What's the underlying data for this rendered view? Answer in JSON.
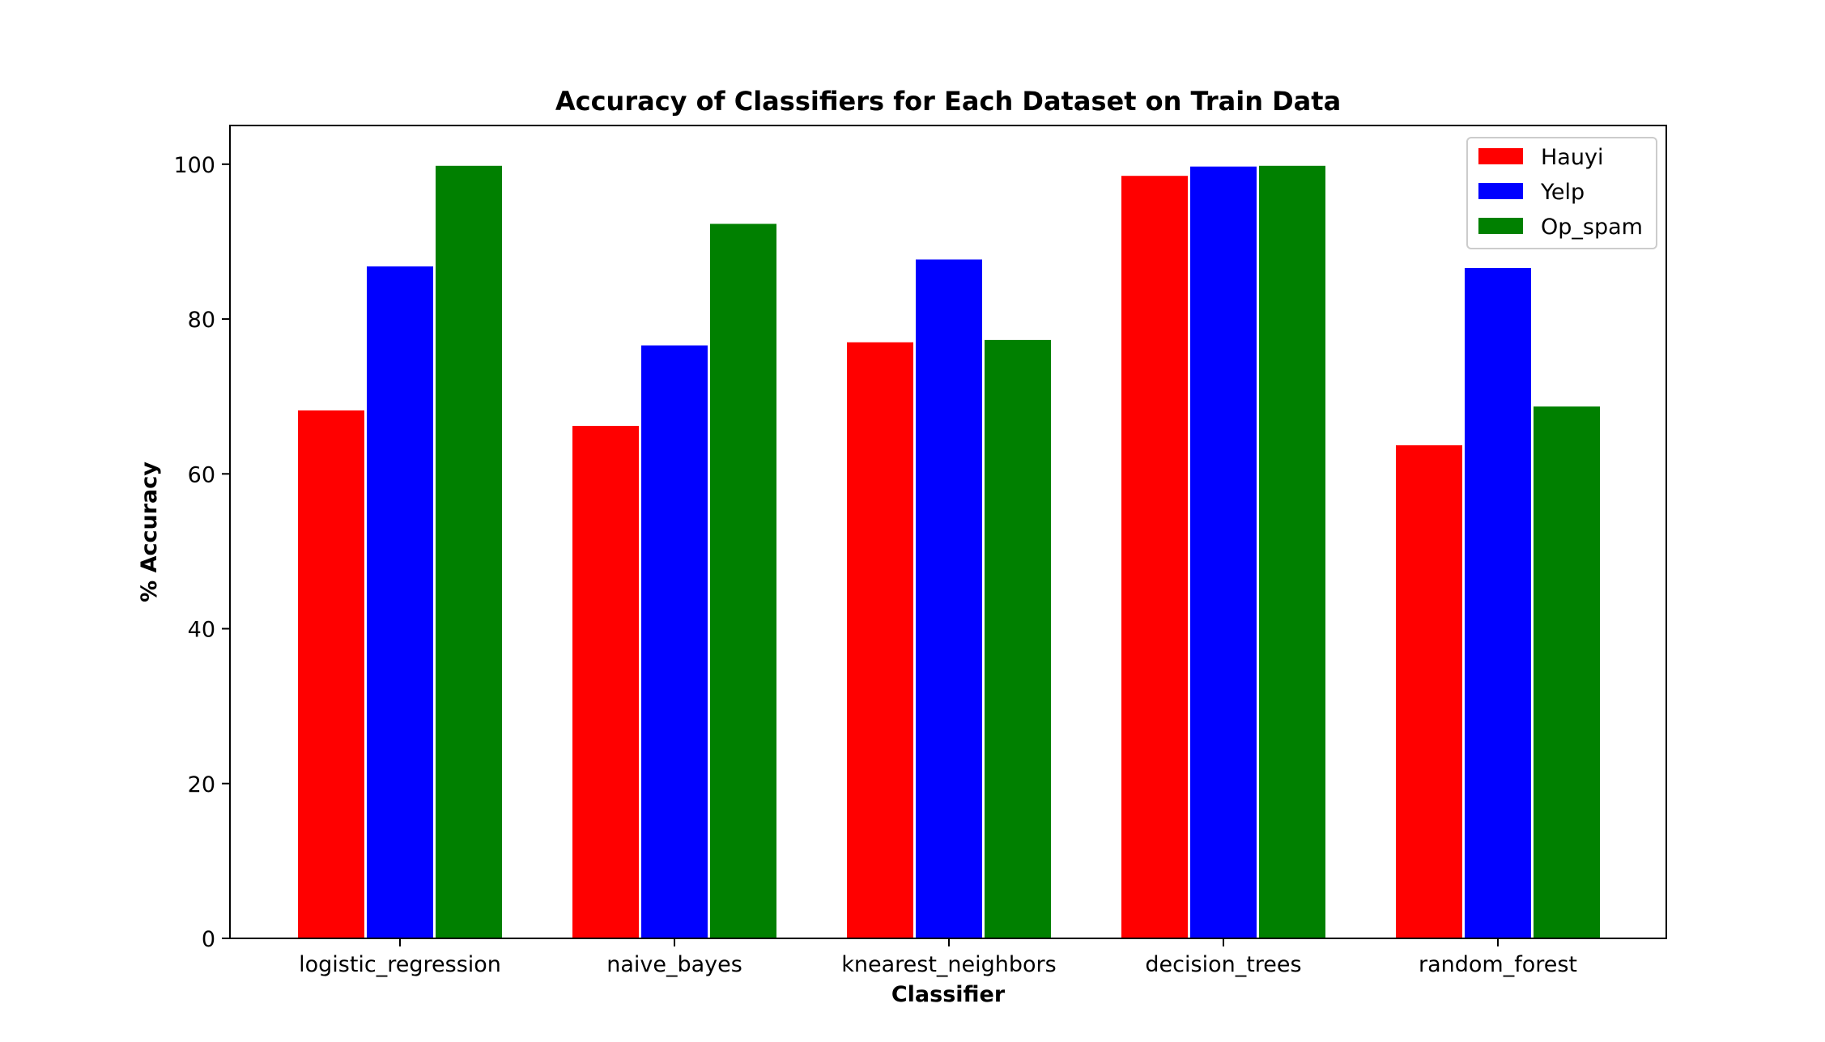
{
  "chart_data": {
    "type": "bar",
    "title": "Accuracy of Classifiers for Each Dataset on Train Data",
    "xlabel": "Classifier",
    "ylabel": "% Accuracy",
    "categories": [
      "logistic_regression",
      "naive_bayes",
      "knearest_neighbors",
      "decision_trees",
      "random_forest"
    ],
    "series": [
      {
        "name": "Hauyi",
        "color": "#ff0000",
        "values": [
          68.3,
          66.3,
          77.1,
          98.6,
          63.8
        ]
      },
      {
        "name": "Yelp",
        "color": "#0000ff",
        "values": [
          86.9,
          76.7,
          87.8,
          99.8,
          86.7
        ]
      },
      {
        "name": "Op_spam",
        "color": "#008000",
        "values": [
          99.9,
          92.4,
          77.4,
          99.9,
          68.8
        ]
      }
    ],
    "ylim": [
      0,
      105
    ],
    "yticks": [
      0,
      20,
      40,
      60,
      80,
      100
    ],
    "grid": false,
    "legend": "top-right"
  }
}
